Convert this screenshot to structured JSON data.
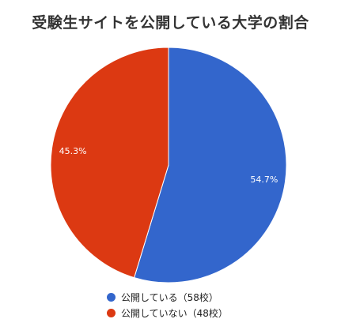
{
  "chart_data": {
    "type": "pie",
    "title": "受験生サイトを公開している大学の割合",
    "slices": [
      {
        "label": "公開している",
        "legend": "公開している（58校）",
        "count": 58,
        "percent_label": "54.7%",
        "value": 54.7,
        "color": "#3366cc"
      },
      {
        "label": "公開していない",
        "legend": "公開していない（48校）",
        "count": 48,
        "percent_label": "45.3%",
        "value": 45.3,
        "color": "#dc3912"
      }
    ],
    "start": "top",
    "direction": "clockwise",
    "legend_position": "bottom"
  }
}
